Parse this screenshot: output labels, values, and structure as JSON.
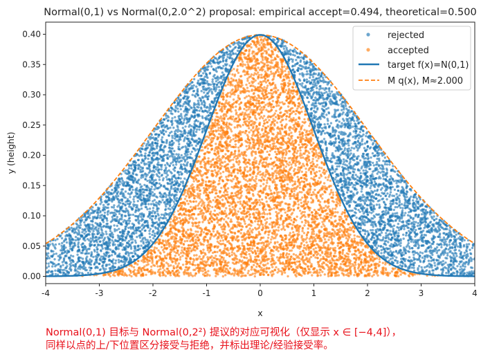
{
  "chart_data": {
    "type": "scatter",
    "title": "Normal(0,1) vs Normal(0,2.0^2) proposal: empirical accept=0.494, theoretical=0.500",
    "xlabel": "x",
    "ylabel": "y (height)",
    "xlim": [
      -4,
      4
    ],
    "ylim": [
      -0.012,
      0.42
    ],
    "x_ticks": [
      "-4",
      "-3",
      "-2",
      "-1",
      "0",
      "1",
      "2",
      "3",
      "4"
    ],
    "y_ticks": [
      "0.00",
      "0.05",
      "0.10",
      "0.15",
      "0.20",
      "0.25",
      "0.30",
      "0.35",
      "0.40"
    ],
    "target": {
      "name": "target f(x)=N(0,1)",
      "mean": 0,
      "sd": 1,
      "color": "#1f77b4"
    },
    "envelope": {
      "name": "M q(x), M≈2.000",
      "M": 2.0,
      "proposal_mean": 0,
      "proposal_sd": 2.0,
      "color": "#ff7f0e",
      "linestyle": "dashed"
    },
    "series": [
      {
        "name": "rejected",
        "color": "#1f77b4",
        "rule": "f(x) < y <= M q(x)"
      },
      {
        "name": "accepted",
        "color": "#ff7f0e",
        "rule": "y <= f(x)"
      }
    ],
    "empirical_accept": 0.494,
    "theoretical_accept": 0.5,
    "legend_position": "top-right"
  },
  "caption": {
    "line1": "Normal(0,1) 目标与 Normal(0,2²) 提议的对应可视化（仅显示 x ∈ [−4,4]），",
    "line2": "同样以点的上/下位置区分接受与拒绝，并标出理论/经验接受率。"
  }
}
